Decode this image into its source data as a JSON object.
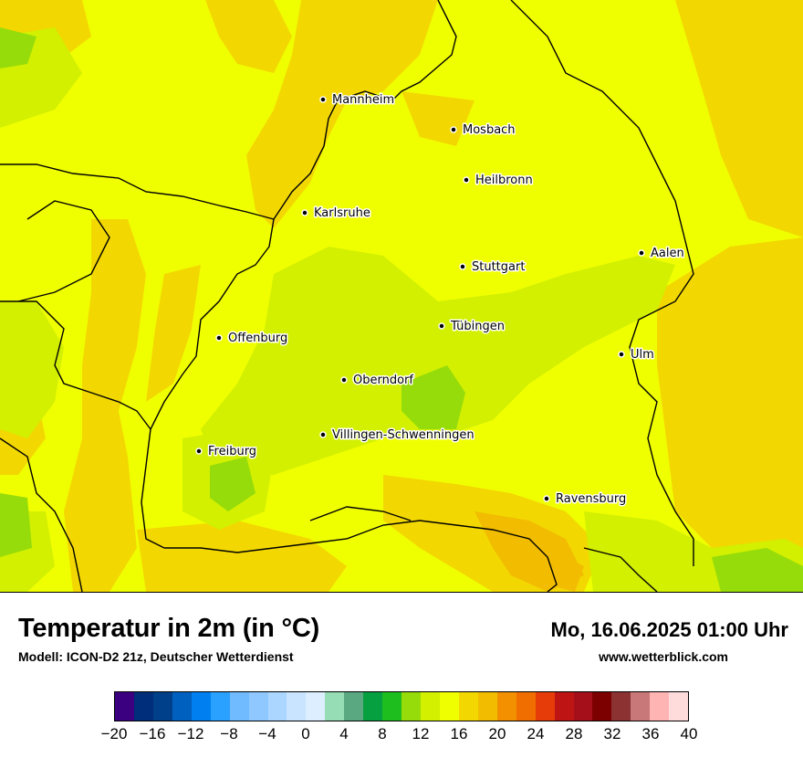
{
  "map": {
    "title": "Temperatur in 2m (in °C)",
    "model": "Modell: ICON-D2 21z, Deutscher Wetterdienst",
    "datetime": "Mo, 16.06.2025 01:00 Uhr",
    "website": "www.wetterblick.com",
    "cities": [
      {
        "name": "Mannheim"
      },
      {
        "name": "Mosbach"
      },
      {
        "name": "Heilbronn"
      },
      {
        "name": "Karlsruhe"
      },
      {
        "name": "Aalen"
      },
      {
        "name": "Stuttgart"
      },
      {
        "name": "Tübingen"
      },
      {
        "name": "Offenburg"
      },
      {
        "name": "Ulm"
      },
      {
        "name": "Oberndorf"
      },
      {
        "name": "Villingen-Schwenningen"
      },
      {
        "name": "Freiburg"
      },
      {
        "name": "Ravensburg"
      }
    ]
  },
  "legend": {
    "colors": [
      "#3a0080",
      "#002e7a",
      "#003f8a",
      "#0060c0",
      "#0080f0",
      "#2aa0ff",
      "#70baff",
      "#8ec8ff",
      "#aad6ff",
      "#c8e4ff",
      "#dceeff",
      "#96dcb4",
      "#5aa882",
      "#06a040",
      "#1ebe1e",
      "#96dc0a",
      "#d2f000",
      "#f0ff00",
      "#f2d800",
      "#f2bc00",
      "#f29000",
      "#f06e00",
      "#e63c0a",
      "#be1414",
      "#a50f19",
      "#7d0000",
      "#8c3232",
      "#c87878",
      "#ffb4b4",
      "#ffdcdc"
    ],
    "ticks": [
      "−20",
      "−16",
      "−12",
      "−8",
      "−4",
      "0",
      "4",
      "8",
      "12",
      "16",
      "20",
      "24",
      "28",
      "32",
      "36",
      "40"
    ]
  }
}
